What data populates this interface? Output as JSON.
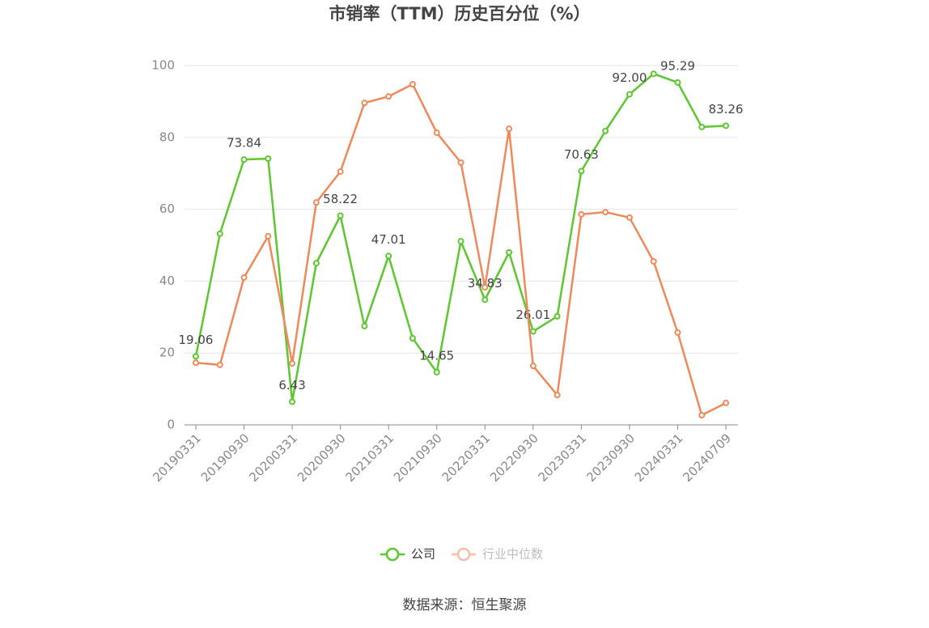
{
  "chart_data": {
    "type": "line",
    "title": "市销率（TTM）历史百分位（%）",
    "categories": [
      "20190331",
      null,
      "20190930",
      null,
      "20200331",
      null,
      "20200930",
      null,
      "20210331",
      null,
      "20210930",
      null,
      "20220331",
      null,
      "20220930",
      null,
      "20230331",
      null,
      "20230930",
      null,
      "20240331",
      null,
      "20240709"
    ],
    "series": [
      {
        "name": "公司",
        "color": "#5cc72e",
        "values": [
          19.06,
          53.2,
          73.84,
          74.1,
          6.43,
          45.0,
          58.22,
          27.5,
          47.01,
          24.1,
          14.65,
          51.1,
          34.83,
          48.0,
          26.01,
          30.2,
          70.63,
          81.8,
          92.0,
          97.7,
          95.29,
          82.9,
          83.26
        ],
        "value_labels": [
          "19.06",
          null,
          "73.84",
          null,
          "6.43",
          null,
          "58.22",
          null,
          "47.01",
          null,
          "14.65",
          null,
          "34.83",
          null,
          "26.01",
          null,
          "70.63",
          null,
          "92.00",
          null,
          "95.29",
          null,
          "83.26"
        ]
      },
      {
        "name": "行业中位数",
        "color": "#f0895a",
        "values": [
          17.3,
          16.7,
          41.0,
          52.5,
          17.1,
          61.9,
          70.5,
          89.6,
          91.4,
          94.8,
          81.3,
          73.0,
          38.3,
          82.4,
          16.4,
          8.3,
          58.6,
          59.2,
          57.7,
          45.5,
          25.7,
          2.7,
          6.1
        ]
      }
    ],
    "ylim": [
      0,
      100
    ],
    "yticks": [
      0,
      20,
      40,
      60,
      80,
      100
    ],
    "grid": true,
    "source": "数据来源：恒生聚源"
  }
}
